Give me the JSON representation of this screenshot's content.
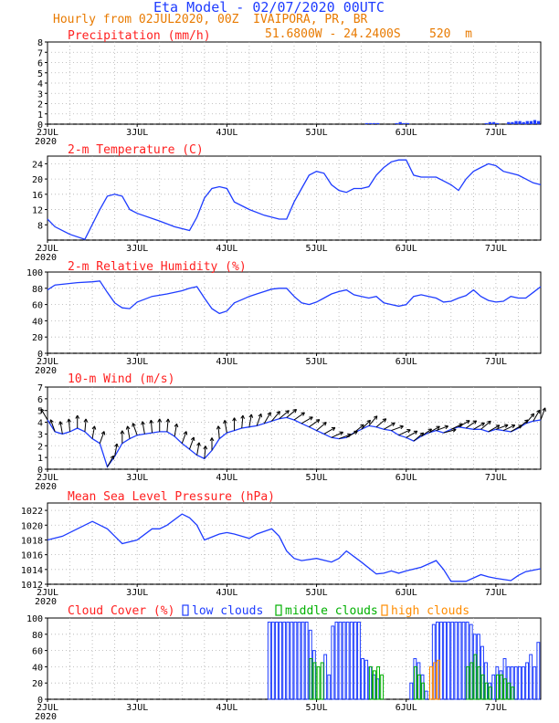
{
  "header": {
    "title": "Eta Model - 02/07/2020 00UTC",
    "subtitle": "Hourly from 02JUL2020, 00Z  IVAIPORA, PR, BR",
    "location": "51.6800W - 24.2400S    520  m"
  },
  "colors": {
    "panel_title": "#ff2020",
    "line": "#1e3cff",
    "grid": "#b0b0b0",
    "low_clouds": "#1e3cff",
    "middle_clouds": "#00b000",
    "high_clouds": "#ff8c00",
    "wind_barbs": "#000000"
  },
  "time_axis": {
    "labels": [
      "2JUL",
      "3JUL",
      "4JUL",
      "5JUL",
      "6JUL",
      "7JUL"
    ],
    "year": "2020",
    "range_hours": [
      0,
      132
    ]
  },
  "chart_data": [
    {
      "id": "precip",
      "type": "bar",
      "title": "Precipitation (mm/h)",
      "ylim": [
        0,
        8
      ],
      "yticks": [
        "0",
        "1",
        "2",
        "3",
        "4",
        "5",
        "6",
        "7",
        "8"
      ],
      "x": [
        86,
        87,
        88,
        89,
        94,
        95,
        96,
        97,
        118,
        119,
        120,
        121,
        124,
        125,
        126,
        127,
        128,
        129,
        130,
        131,
        132
      ],
      "values": [
        0.1,
        0.1,
        0.1,
        0.1,
        0.1,
        0.2,
        0.1,
        0.1,
        0.1,
        0.2,
        0.2,
        0.1,
        0.2,
        0.2,
        0.3,
        0.3,
        0.2,
        0.3,
        0.3,
        0.4,
        0.3
      ],
      "grid": true
    },
    {
      "id": "temp",
      "type": "line",
      "title": "2-m Temperature (C)",
      "ylim": [
        4,
        26
      ],
      "yticks": [
        "8",
        "12",
        "16",
        "20",
        "24"
      ],
      "x": [
        0,
        2,
        6,
        10,
        14,
        16,
        18,
        20,
        22,
        24,
        30,
        34,
        38,
        40,
        42,
        44,
        46,
        48,
        50,
        54,
        58,
        62,
        64,
        66,
        68,
        70,
        72,
        74,
        76,
        78,
        80,
        82,
        84,
        86,
        88,
        90,
        92,
        94,
        96,
        98,
        100,
        102,
        104,
        106,
        108,
        110,
        112,
        114,
        116,
        118,
        120,
        122,
        124,
        126,
        128,
        130,
        132
      ],
      "values": [
        9.5,
        7.5,
        5.5,
        4.2,
        12,
        15.5,
        16,
        15.5,
        12,
        11,
        9,
        7.5,
        6.5,
        10,
        15,
        17.5,
        18,
        17.5,
        14,
        12,
        10.5,
        9.5,
        9.5,
        14,
        17.5,
        21,
        22,
        21.5,
        18.5,
        17,
        16.5,
        17.5,
        17.5,
        18,
        21,
        23,
        24.5,
        25,
        25,
        21,
        20.5,
        20.5,
        20.5,
        19.5,
        18.5,
        17,
        20,
        22,
        23,
        24,
        23.5,
        22,
        21.5,
        21,
        20,
        19,
        18.5
      ],
      "grid": true
    },
    {
      "id": "rh",
      "type": "line",
      "title": "2-m Relative Humidity (%)",
      "ylim": [
        0,
        100
      ],
      "yticks": [
        "0",
        "20",
        "40",
        "60",
        "80",
        "100"
      ],
      "x": [
        0,
        2,
        4,
        8,
        12,
        14,
        16,
        18,
        20,
        22,
        24,
        28,
        32,
        36,
        38,
        40,
        42,
        44,
        46,
        48,
        50,
        52,
        54,
        56,
        58,
        60,
        62,
        64,
        66,
        68,
        70,
        72,
        74,
        76,
        78,
        80,
        82,
        84,
        86,
        88,
        90,
        92,
        94,
        96,
        98,
        100,
        102,
        104,
        106,
        108,
        110,
        112,
        114,
        116,
        118,
        120,
        122,
        124,
        126,
        128,
        130,
        132
      ],
      "values": [
        78,
        84,
        85,
        87,
        88,
        89,
        75,
        62,
        56,
        55,
        63,
        70,
        73,
        77,
        80,
        82,
        68,
        55,
        49,
        52,
        62,
        66,
        70,
        73,
        76,
        79,
        80,
        80,
        70,
        62,
        60,
        63,
        68,
        73,
        76,
        78,
        72,
        70,
        68,
        70,
        62,
        60,
        58,
        60,
        70,
        72,
        70,
        68,
        63,
        64,
        68,
        71,
        78,
        70,
        65,
        63,
        64,
        70,
        68,
        68,
        75,
        82
      ],
      "grid": true
    },
    {
      "id": "wind",
      "type": "line",
      "title": "10-m Wind (m/s)",
      "ylim": [
        0,
        7
      ],
      "yticks": [
        "0",
        "1",
        "2",
        "3",
        "4",
        "5",
        "6",
        "7"
      ],
      "x": [
        0,
        2,
        4,
        6,
        8,
        10,
        12,
        14,
        16,
        18,
        20,
        22,
        24,
        26,
        28,
        30,
        32,
        34,
        36,
        38,
        40,
        42,
        44,
        46,
        48,
        50,
        52,
        54,
        56,
        58,
        60,
        62,
        64,
        66,
        68,
        70,
        72,
        74,
        76,
        78,
        80,
        82,
        84,
        86,
        88,
        90,
        92,
        94,
        96,
        98,
        100,
        102,
        104,
        106,
        108,
        110,
        112,
        114,
        116,
        118,
        120,
        122,
        124,
        126,
        128,
        130,
        132
      ],
      "values": [
        4.2,
        3.2,
        3,
        3.2,
        3.5,
        3.2,
        2.6,
        2.2,
        0.2,
        1.1,
        2.2,
        2.6,
        2.9,
        3,
        3.1,
        3.2,
        3.2,
        2.8,
        2.2,
        1.7,
        1.2,
        0.9,
        1.6,
        2.6,
        3.1,
        3.3,
        3.5,
        3.6,
        3.7,
        3.9,
        4.1,
        4.3,
        4.4,
        4.2,
        3.9,
        3.6,
        3.3,
        3,
        2.7,
        2.6,
        2.7,
        3.1,
        3.4,
        3.7,
        3.6,
        3.4,
        3.3,
        2.9,
        2.7,
        2.4,
        2.8,
        3.1,
        3.3,
        3.1,
        3.4,
        3.6,
        3.5,
        3.4,
        3.4,
        3.2,
        3.4,
        3.3,
        3.2,
        3.5,
        3.9,
        4.1,
        4.2
      ],
      "barb_dir": [
        60,
        70,
        80,
        85,
        90,
        95,
        100,
        110,
        120,
        100,
        90,
        80,
        70,
        80,
        85,
        90,
        95,
        100,
        110,
        110,
        100,
        95,
        90,
        85,
        80,
        90,
        95,
        100,
        110,
        120,
        130,
        140,
        140,
        145,
        150,
        145,
        140,
        150,
        155,
        160,
        150,
        140,
        135,
        130,
        140,
        150,
        160,
        155,
        150,
        140,
        145,
        150,
        160,
        165,
        155,
        150,
        145,
        150,
        140,
        150,
        160,
        155,
        150,
        140,
        130,
        120,
        110
      ],
      "grid": true
    },
    {
      "id": "mslp",
      "type": "line",
      "title": "Mean Sea Level Pressure (hPa)",
      "ylim": [
        1012,
        1023
      ],
      "yticks": [
        "1012",
        "1014",
        "1016",
        "1018",
        "1020",
        "1022"
      ],
      "x": [
        0,
        4,
        8,
        12,
        16,
        20,
        24,
        28,
        30,
        32,
        36,
        38,
        40,
        42,
        46,
        48,
        50,
        52,
        54,
        56,
        60,
        62,
        64,
        66,
        68,
        72,
        76,
        78,
        80,
        84,
        88,
        90,
        92,
        94,
        96,
        100,
        104,
        106,
        108,
        112,
        116,
        118,
        120,
        124,
        126,
        128,
        132
      ],
      "values": [
        1018,
        1018.5,
        1019.5,
        1020.5,
        1019.5,
        1017.5,
        1018,
        1019.5,
        1019.5,
        1020,
        1021.5,
        1021,
        1020,
        1018,
        1018.8,
        1019,
        1018.8,
        1018.5,
        1018.2,
        1018.8,
        1019.5,
        1018.5,
        1016.5,
        1015.5,
        1015.2,
        1015.5,
        1015,
        1015.5,
        1016.5,
        1015,
        1013.4,
        1013.5,
        1013.8,
        1013.5,
        1013.8,
        1014.3,
        1015.2,
        1014,
        1012.4,
        1012.4,
        1013.3,
        1013,
        1012.8,
        1012.5,
        1013.2,
        1013.7,
        1014.1
      ],
      "grid": true
    },
    {
      "id": "cloud",
      "type": "bar",
      "title": "Cloud Cover (%)",
      "legend": [
        "low clouds",
        "middle clouds",
        "high clouds"
      ],
      "ylim": [
        0,
        100
      ],
      "yticks": [
        "0",
        "20",
        "40",
        "60",
        "80",
        "100"
      ],
      "series": [
        {
          "name": "low clouds",
          "x": [
            60,
            61,
            62,
            63,
            64,
            65,
            66,
            67,
            68,
            69,
            70,
            71,
            72,
            75,
            76,
            77,
            78,
            79,
            80,
            81,
            82,
            83,
            84,
            85,
            86,
            87,
            88,
            89,
            98,
            99,
            100,
            101,
            102,
            104,
            105,
            106,
            107,
            108,
            109,
            110,
            111,
            112,
            113,
            114,
            115,
            116,
            117,
            118,
            119,
            120,
            121,
            122,
            123,
            124,
            125,
            126,
            127,
            128,
            129,
            130,
            131,
            132
          ],
          "values": [
            95,
            95,
            95,
            95,
            95,
            95,
            95,
            95,
            95,
            95,
            95,
            85,
            60,
            55,
            30,
            90,
            95,
            95,
            95,
            95,
            95,
            95,
            95,
            50,
            48,
            40,
            30,
            25,
            20,
            50,
            45,
            30,
            10,
            92,
            95,
            95,
            95,
            95,
            95,
            95,
            95,
            95,
            95,
            92,
            80,
            80,
            65,
            45,
            20,
            30,
            40,
            35,
            50,
            40,
            40,
            40,
            40,
            40,
            45,
            55,
            40,
            70
          ]
        },
        {
          "name": "middle clouds",
          "x": [
            71,
            72,
            73,
            74,
            87,
            88,
            89,
            90,
            99,
            100,
            101,
            113,
            114,
            115,
            116,
            117,
            118,
            119,
            121,
            122,
            123,
            124,
            125
          ],
          "values": [
            50,
            45,
            40,
            45,
            40,
            35,
            40,
            30,
            40,
            30,
            20,
            40,
            45,
            55,
            40,
            30,
            20,
            15,
            30,
            30,
            25,
            20,
            15
          ]
        },
        {
          "name": "high clouds",
          "x": [
            103,
            104,
            105
          ],
          "values": [
            40,
            45,
            48
          ]
        }
      ],
      "grid": true
    }
  ]
}
